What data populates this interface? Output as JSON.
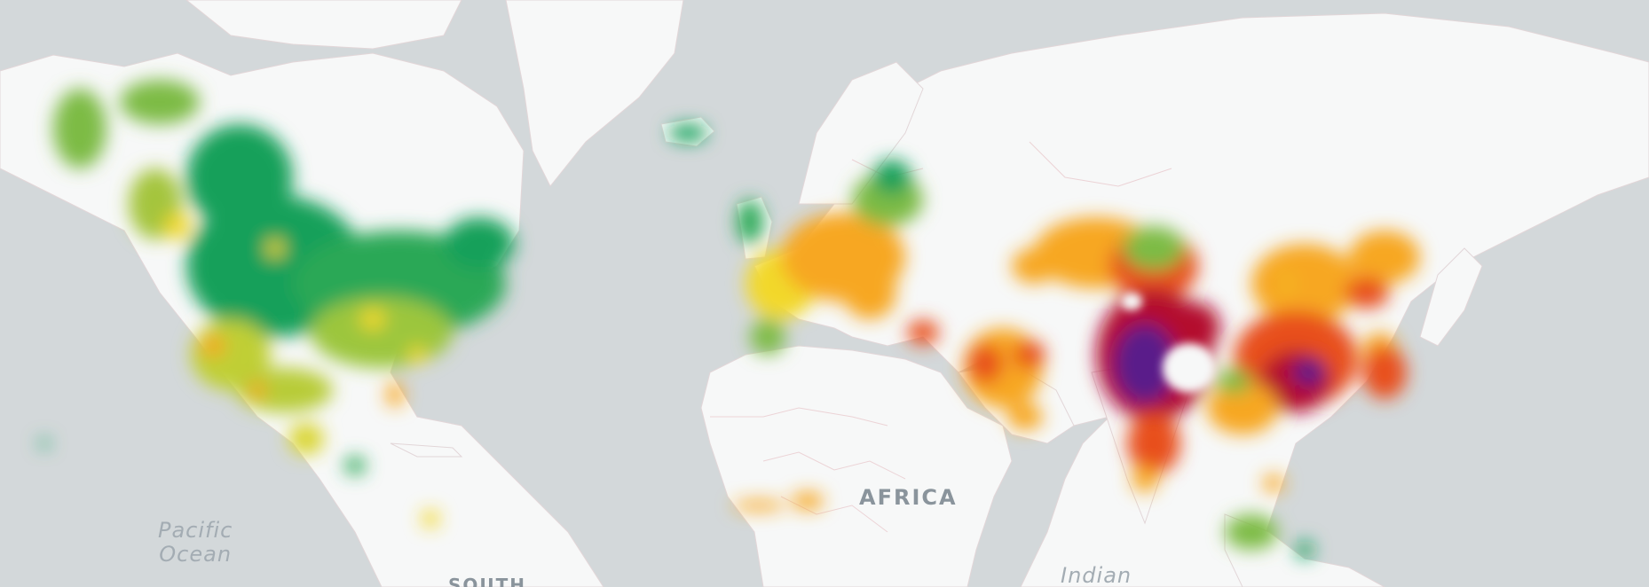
{
  "map": {
    "colors": {
      "ocean": "#d3d8da",
      "land": "#f7f8f8",
      "border": "#e6cfd2",
      "scale": [
        "#17a05a",
        "#7dbb44",
        "#f2d82a",
        "#f7a723",
        "#e8501f",
        "#b4092f",
        "#5a1a8a"
      ]
    },
    "labels": {
      "pacific_line1": "Pacific",
      "pacific_line2": "Ocean",
      "africa": "AFRICA",
      "south": "SOUTH",
      "indian": "Indian"
    }
  }
}
